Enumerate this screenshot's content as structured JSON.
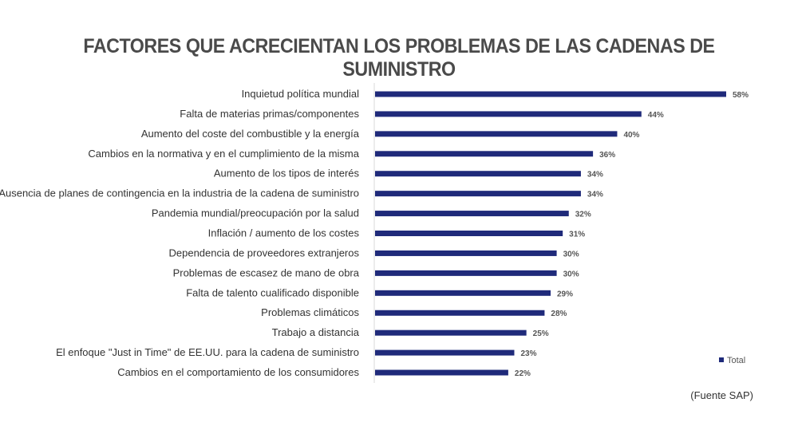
{
  "chart_data": {
    "type": "bar",
    "orientation": "horizontal",
    "title": "FACTORES QUE ACRECIENTAN LOS PROBLEMAS DE LAS CADENAS DE SUMINISTRO",
    "categories": [
      "Inquietud política mundial",
      "Falta de materias primas/componentes",
      "Aumento del coste del combustible y la energía",
      "Cambios en la normativa y en el cumplimiento de la misma",
      "Aumento de los tipos de interés",
      "Ausencia de planes de contingencia en la industria de la cadena de suministro",
      "Pandemia mundial/preocupación por la salud",
      "Inflación / aumento de los costes",
      "Dependencia de proveedores extranjeros",
      "Problemas de escasez de mano de obra",
      "Falta de talento cualificado disponible",
      "Problemas climáticos",
      "Trabajo a distancia",
      "El enfoque \"Just in Time\" de EE.UU. para la cadena de suministro",
      "Cambios en el comportamiento de los consumidores"
    ],
    "series": [
      {
        "name": "Total",
        "values": [
          58,
          44,
          40,
          36,
          34,
          34,
          32,
          31,
          30,
          30,
          29,
          28,
          25,
          23,
          22
        ]
      }
    ],
    "value_labels": [
      "58%",
      "44%",
      "40%",
      "36%",
      "34%",
      "34%",
      "32%",
      "31%",
      "30%",
      "30%",
      "29%",
      "28%",
      "25%",
      "23%",
      "22%"
    ],
    "xlim": [
      0,
      58
    ],
    "legend_position": "bottom-right",
    "grid": false,
    "bar_color": "#1f2a7a"
  },
  "footer": {
    "source": "(Fuente SAP)"
  }
}
